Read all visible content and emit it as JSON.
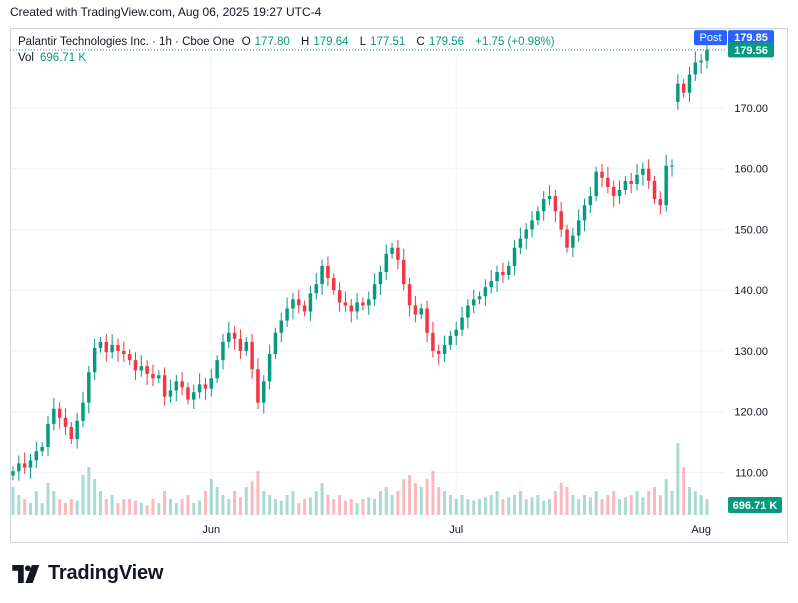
{
  "header": {
    "created_text": "Created with TradingView.com, Aug 06, 2025 19:27 UTC-4"
  },
  "legend": {
    "symbol": "Palantir Technologies Inc. · 1h · Cboe One",
    "open_label": "O",
    "open": "177.80",
    "high_label": "H",
    "high": "179.64",
    "low_label": "L",
    "low": "177.51",
    "close_label": "C",
    "close": "179.56",
    "change": "+1.75 (+0.98%)",
    "vol_label": "Vol",
    "vol": "696.71 K"
  },
  "badges": {
    "post_label": "Post",
    "post_price": "179.85",
    "last_price": "179.56",
    "vol_badge": "696.71 K"
  },
  "colors": {
    "up": "#089981",
    "down": "#f23645",
    "post": "#2962ff",
    "grid": "#f0f3fa",
    "text": "#131722"
  },
  "logo": {
    "text": "TradingView",
    "icon": "tradingview-logo-icon"
  },
  "chart_data": {
    "type": "candlestick",
    "title": "Palantir Technologies Inc. · 1h · Cboe One",
    "ylim": [
      103,
      183
    ],
    "y_ticks": [
      "110.00",
      "120.00",
      "130.00",
      "140.00",
      "150.00",
      "160.00",
      "170.00"
    ],
    "x_ticks": [
      "Jun",
      "Jul",
      "Aug"
    ],
    "x_tick_index": [
      34,
      76,
      118
    ],
    "last_close": 179.56,
    "post_price": 179.85,
    "candles_close": [
      110.2,
      111.5,
      110.8,
      112.0,
      113.5,
      114.2,
      118.0,
      120.5,
      119.0,
      117.5,
      115.5,
      118.5,
      121.5,
      126.5,
      130.5,
      131.5,
      129.8,
      131.0,
      130.0,
      129.5,
      128.5,
      126.8,
      127.5,
      126.2,
      125.5,
      126.0,
      122.5,
      123.5,
      125.0,
      124.0,
      122.0,
      123.2,
      124.5,
      123.8,
      125.5,
      128.5,
      131.5,
      133.0,
      132.0,
      130.0,
      131.5,
      127.0,
      121.5,
      125.0,
      129.5,
      133.0,
      135.0,
      137.0,
      138.5,
      137.5,
      136.5,
      139.5,
      141.0,
      144.0,
      142.0,
      140.0,
      138.0,
      137.5,
      136.5,
      138.0,
      137.5,
      138.5,
      141.0,
      143.0,
      146.0,
      147.0,
      145.0,
      141.0,
      137.5,
      136.0,
      137.0,
      133.0,
      130.0,
      129.5,
      131.0,
      132.5,
      133.5,
      135.5,
      137.5,
      138.5,
      139.0,
      140.5,
      141.5,
      143.0,
      142.5,
      144.0,
      147.0,
      148.5,
      150.0,
      151.5,
      153.0,
      155.0,
      155.5,
      153.0,
      150.0,
      147.0,
      149.0,
      151.5,
      154.0,
      155.5,
      159.5,
      158.5,
      157.0,
      155.5,
      156.5,
      158.0,
      157.5,
      159.0,
      160.0,
      158.0,
      155.0,
      154.0,
      160.5,
      160.5,
      174.0,
      172.5,
      175.5,
      177.5,
      177.8,
      179.56
    ],
    "candles_open": [
      109.5,
      110.2,
      111.5,
      110.8,
      112.0,
      113.5,
      114.2,
      118.0,
      120.5,
      119.0,
      117.5,
      115.5,
      118.5,
      121.5,
      126.5,
      130.5,
      131.5,
      129.8,
      131.0,
      130.0,
      129.5,
      128.5,
      126.8,
      127.5,
      126.2,
      125.5,
      126.0,
      122.5,
      123.5,
      125.0,
      124.0,
      122.0,
      123.2,
      124.5,
      123.8,
      125.5,
      128.5,
      131.5,
      133.0,
      132.0,
      130.0,
      131.5,
      127.0,
      121.5,
      125.0,
      129.5,
      133.0,
      135.0,
      137.0,
      138.5,
      137.5,
      136.5,
      139.5,
      141.0,
      144.0,
      142.0,
      140.0,
      138.0,
      137.5,
      136.5,
      138.0,
      137.5,
      138.5,
      141.0,
      143.0,
      146.0,
      147.0,
      145.0,
      141.0,
      137.5,
      136.0,
      137.0,
      133.0,
      130.0,
      129.5,
      131.0,
      132.5,
      133.5,
      135.5,
      137.5,
      138.5,
      139.0,
      140.5,
      141.5,
      143.0,
      142.5,
      144.0,
      147.0,
      148.5,
      150.0,
      151.5,
      153.0,
      155.0,
      155.5,
      153.0,
      150.0,
      147.0,
      149.0,
      151.5,
      154.0,
      155.5,
      159.5,
      158.5,
      157.0,
      155.5,
      156.5,
      158.0,
      157.5,
      159.0,
      160.0,
      158.0,
      155.0,
      154.0,
      160.5,
      171.0,
      174.0,
      172.5,
      175.5,
      177.5,
      177.8
    ],
    "volume_level": [
      0.35,
      0.25,
      0.2,
      0.15,
      0.3,
      0.15,
      0.4,
      0.3,
      0.2,
      0.15,
      0.2,
      0.18,
      0.5,
      0.6,
      0.45,
      0.3,
      0.2,
      0.25,
      0.15,
      0.2,
      0.2,
      0.18,
      0.15,
      0.12,
      0.2,
      0.15,
      0.3,
      0.2,
      0.15,
      0.2,
      0.25,
      0.15,
      0.18,
      0.3,
      0.45,
      0.35,
      0.25,
      0.2,
      0.3,
      0.22,
      0.35,
      0.42,
      0.55,
      0.3,
      0.25,
      0.2,
      0.18,
      0.25,
      0.3,
      0.15,
      0.2,
      0.22,
      0.3,
      0.4,
      0.25,
      0.2,
      0.25,
      0.18,
      0.2,
      0.15,
      0.2,
      0.22,
      0.2,
      0.3,
      0.35,
      0.25,
      0.3,
      0.45,
      0.5,
      0.4,
      0.35,
      0.45,
      0.55,
      0.35,
      0.3,
      0.25,
      0.2,
      0.25,
      0.2,
      0.18,
      0.2,
      0.22,
      0.25,
      0.3,
      0.2,
      0.22,
      0.25,
      0.3,
      0.2,
      0.22,
      0.25,
      0.18,
      0.2,
      0.3,
      0.4,
      0.35,
      0.25,
      0.2,
      0.25,
      0.22,
      0.3,
      0.2,
      0.25,
      0.3,
      0.2,
      0.22,
      0.25,
      0.3,
      0.22,
      0.3,
      0.35,
      0.25,
      0.45,
      0.3,
      0.9,
      0.6,
      0.35,
      0.3,
      0.25,
      0.2
    ]
  }
}
